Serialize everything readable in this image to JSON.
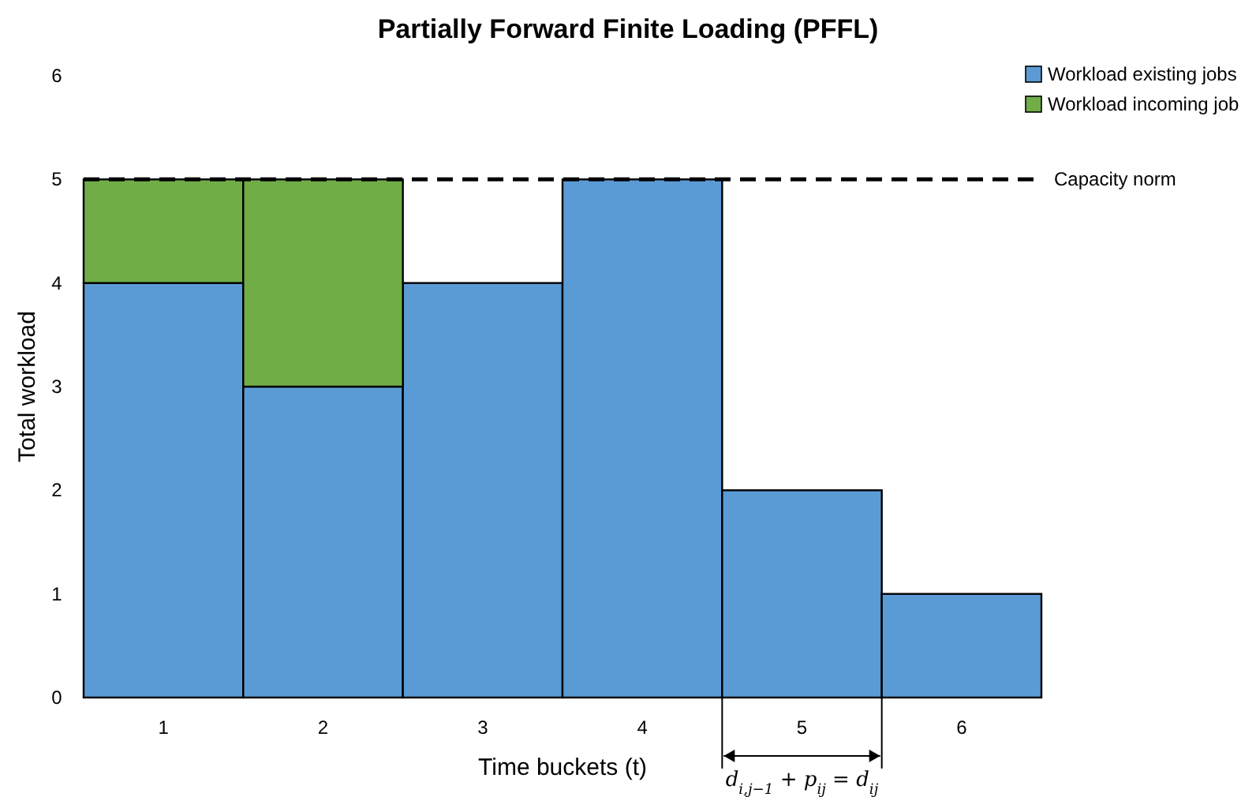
{
  "chart_data": {
    "type": "bar",
    "title": "Partially Forward Finite Loading (PFFL)",
    "xlabel": "Time buckets (t)",
    "ylabel": "Total workload",
    "categories": [
      "1",
      "2",
      "3",
      "4",
      "5",
      "6"
    ],
    "series": [
      {
        "name": "Workload existing jobs",
        "color": "#5b9bd5",
        "values": [
          4,
          3,
          4,
          5,
          2,
          1
        ]
      },
      {
        "name": "Workload incoming job",
        "color": "#70ad47",
        "values": [
          1,
          2,
          0,
          0,
          0,
          0
        ]
      }
    ],
    "stacked": true,
    "ylim": [
      0,
      6
    ],
    "yticks": [
      0,
      1,
      2,
      3,
      4,
      5,
      6
    ],
    "grid": false,
    "legend": "top right",
    "ref_lines": [
      {
        "axis": "y",
        "value": 5,
        "label": "Capacity norm",
        "color": "#000000",
        "line_style": "dashed"
      }
    ],
    "annotations": [
      "d$_{i,j−1}$ + p$_{ij}$ = d$_{ij}$"
    ]
  }
}
